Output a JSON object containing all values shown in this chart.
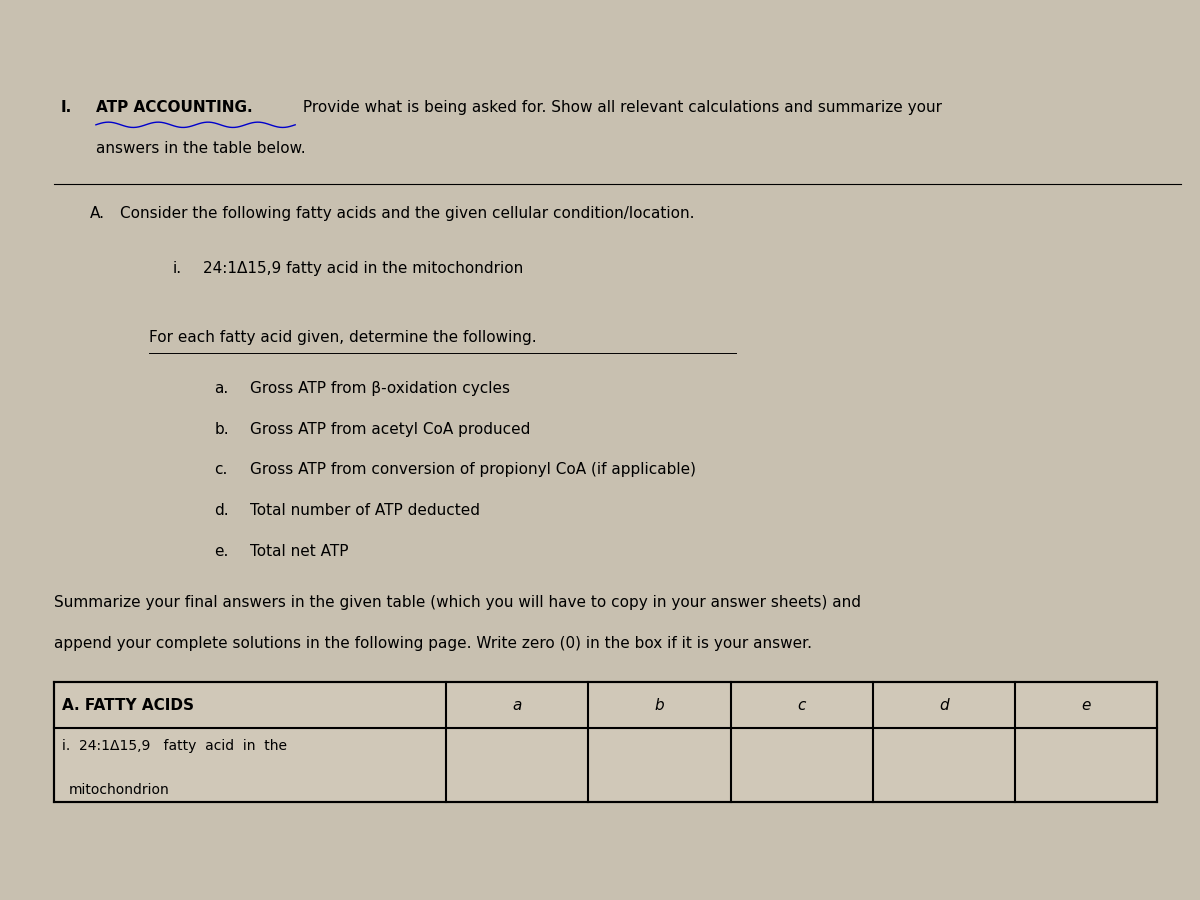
{
  "background_color": "#c8c0b0",
  "fig_width": 12.0,
  "fig_height": 9.0,
  "title_number": "I.",
  "title_bold": "ATP ACCOUNTING.",
  "title_rest": " Provide what is being asked for. Show all relevant calculations and summarize your",
  "title_line2": "answers in the table below.",
  "section_A_label": "A.",
  "section_A_text": "Consider the following fatty acids and the given cellular condition/location.",
  "item_i_label": "i.",
  "item_i_text": "24:1Δ15,9 fatty acid in the mitochondrion",
  "for_each_text": "For each fatty acid given, determine the following.",
  "items": [
    {
      "label": "a.",
      "text": "Gross ATP from β-oxidation cycles"
    },
    {
      "label": "b.",
      "text": "Gross ATP from acetyl CoA produced"
    },
    {
      "label": "c.",
      "text": "Gross ATP from conversion of propionyl CoA (if applicable)"
    },
    {
      "label": "d.",
      "text": "Total number of ATP deducted"
    },
    {
      "label": "e.",
      "text": "Total net ATP"
    }
  ],
  "summarize_line1": "Summarize your final answers in the given table (which you will have to copy in your answer sheets) and",
  "summarize_line2": "append your complete solutions in the following page. Write zero (0) in the box if it is your answer.",
  "table_header": [
    "A. FATTY ACIDS",
    "a",
    "b",
    "c",
    "d",
    "e"
  ],
  "table_row1_col0_line1": "i.  24:1Δ15,9   fatty  acid  in  the",
  "table_row1_col0_line2": "mitochondrion",
  "underline_color": "#0000cc"
}
